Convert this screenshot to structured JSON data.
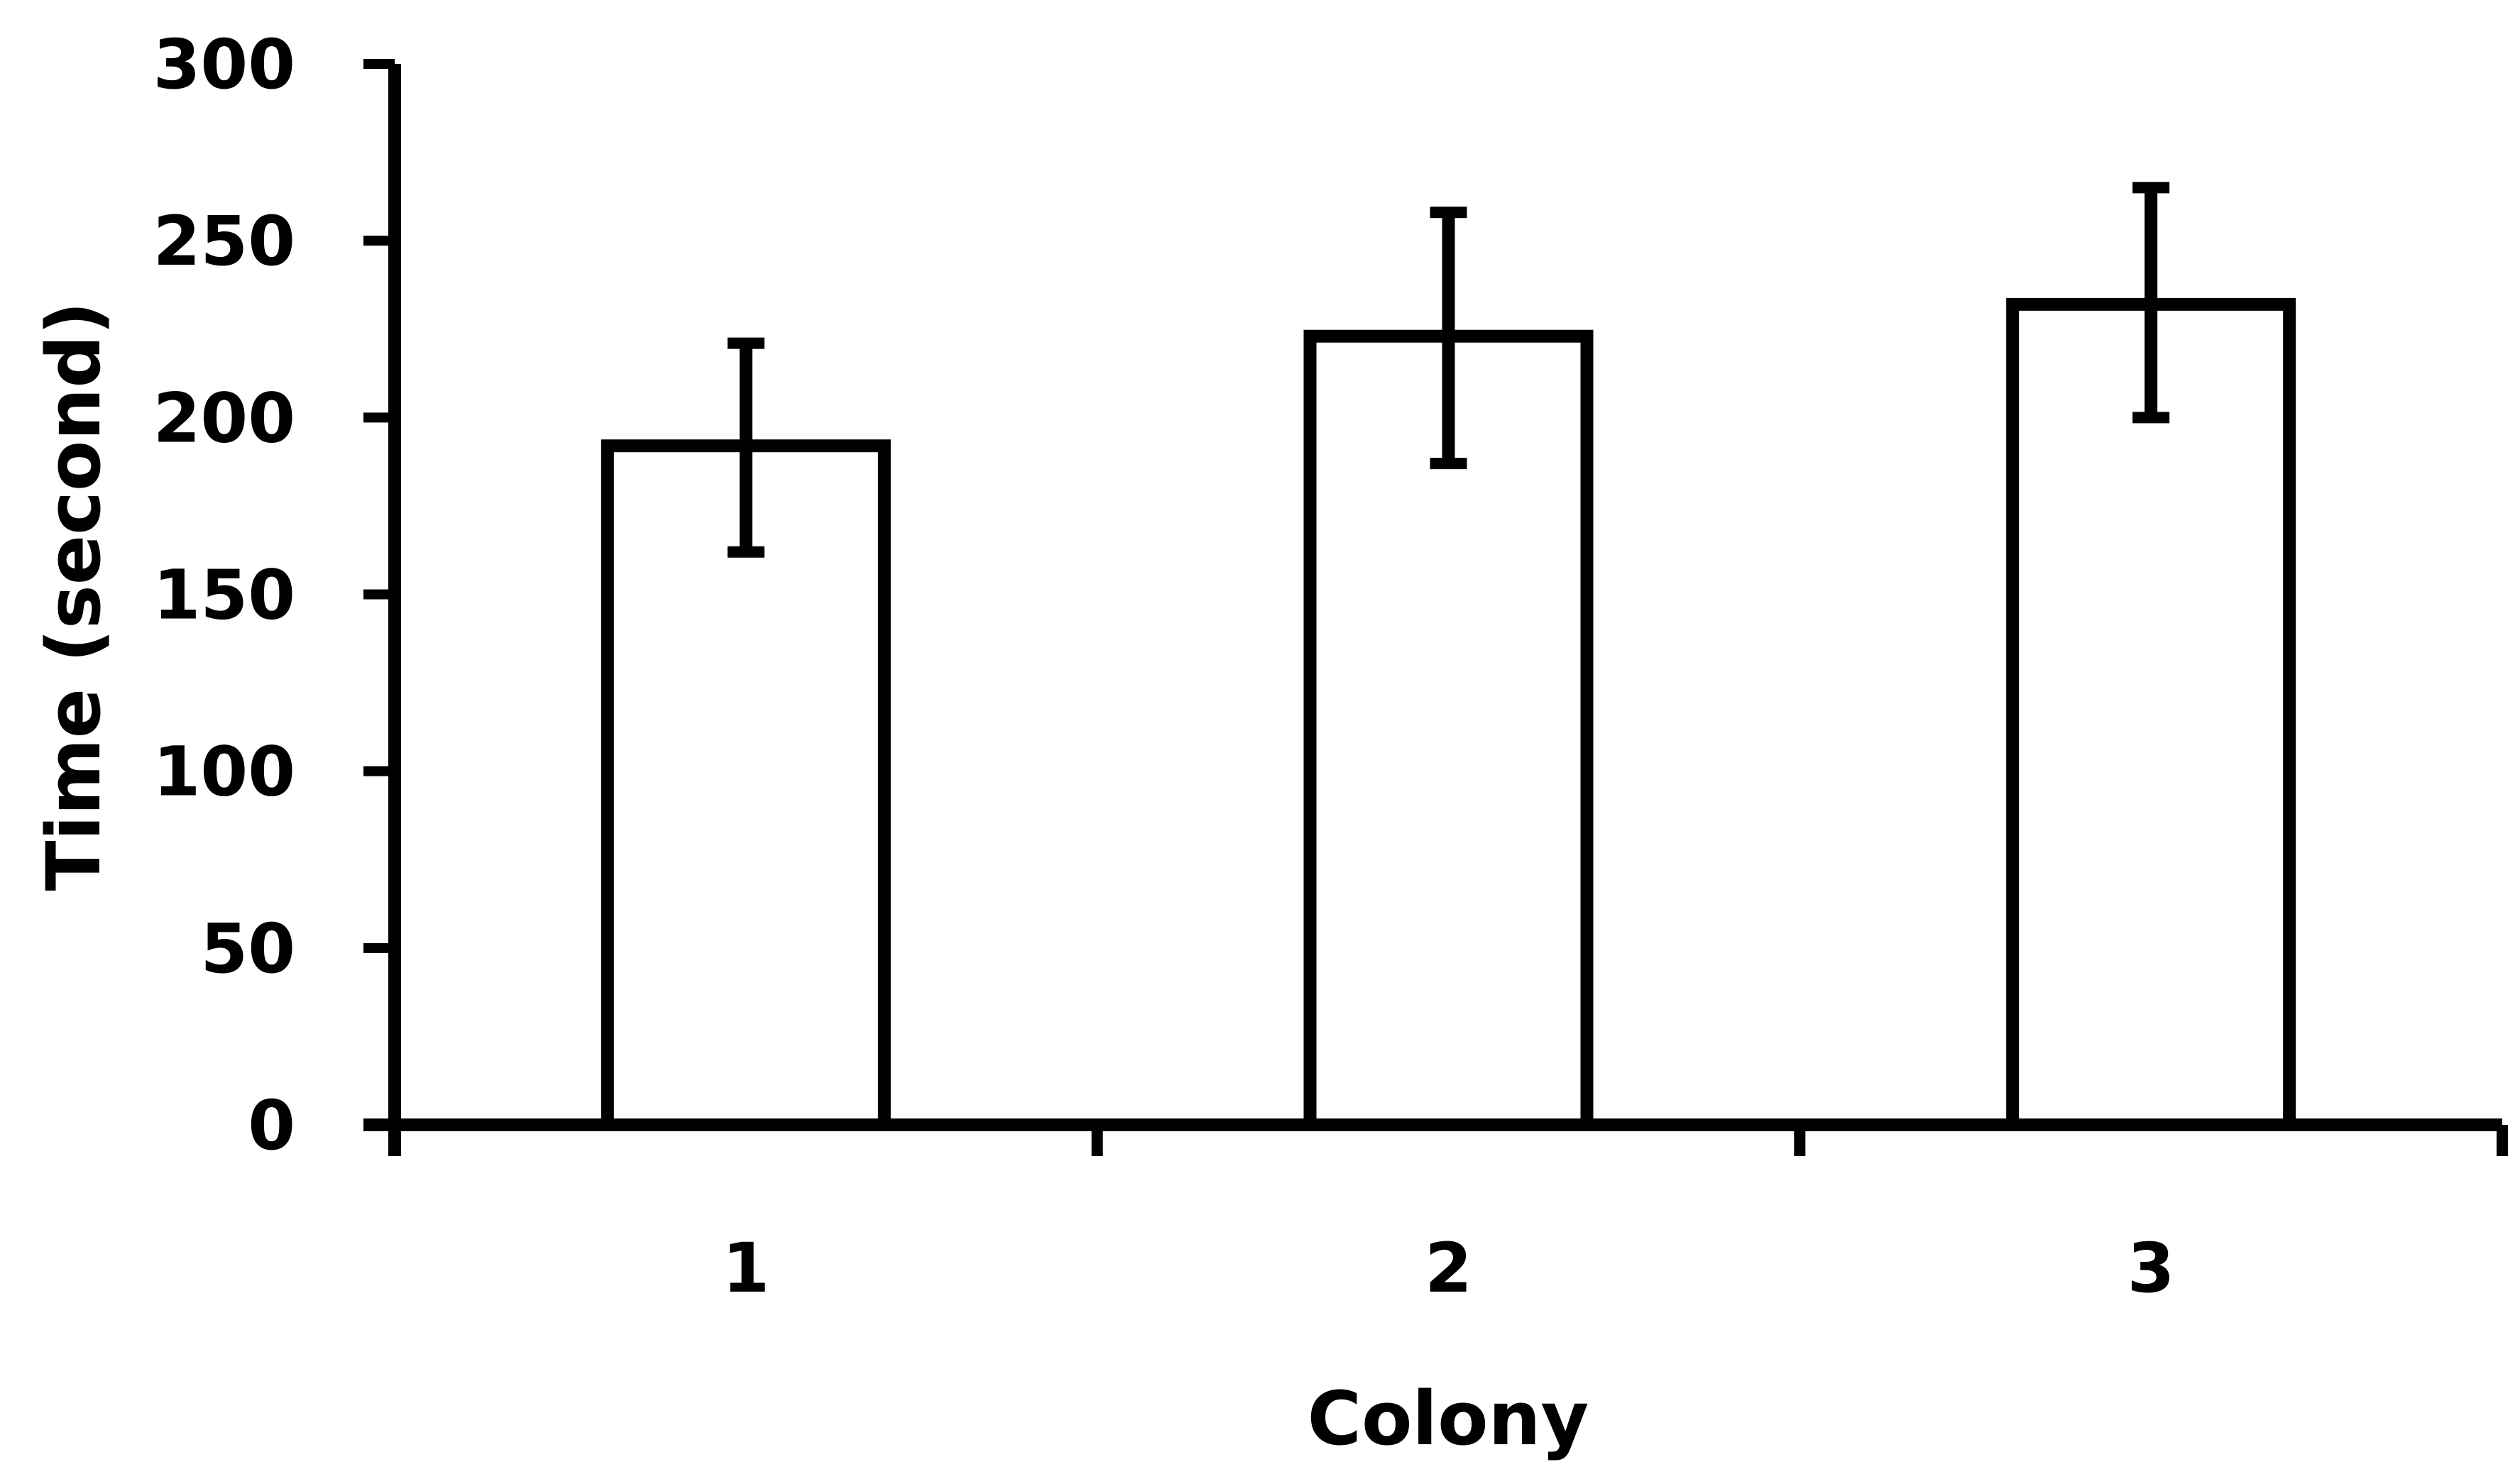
{
  "chart_data": {
    "type": "bar",
    "categories": [
      "1",
      "2",
      "3"
    ],
    "values": [
      192,
      223,
      232
    ],
    "error_bars": [
      {
        "low": 162,
        "high": 221
      },
      {
        "low": 187,
        "high": 258
      },
      {
        "low": 200,
        "high": 265
      }
    ],
    "xlabel": "Colony",
    "ylabel": "Time (second)",
    "ylim": [
      0,
      300
    ],
    "yticks": [
      "0",
      "50",
      "100",
      "150",
      "200",
      "250",
      "300"
    ],
    "grid": false,
    "legend": "none",
    "colors": {
      "bar_fill": "#ffffff",
      "bar_stroke": "#000000",
      "axis": "#000000",
      "error_bar": "#000000"
    }
  }
}
